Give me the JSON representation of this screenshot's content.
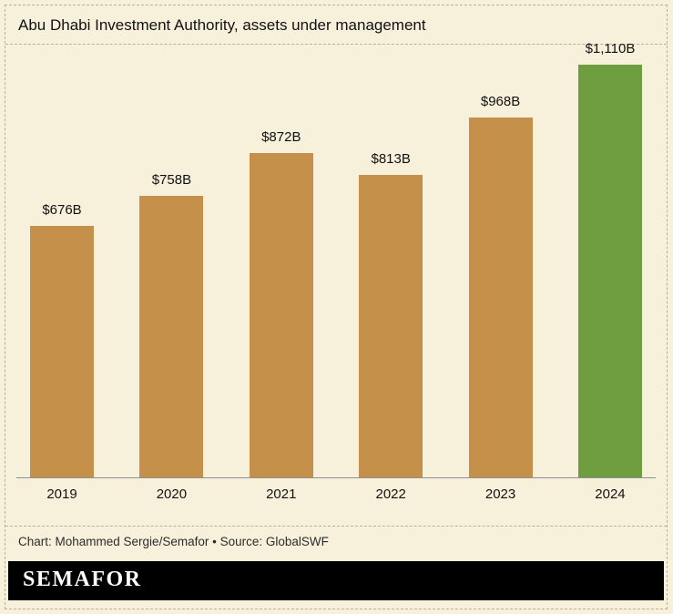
{
  "title": "Abu Dhabi Investment Authority, assets under management",
  "credit": "Chart: Mohammed Sergie/Semafor • Source: GlobalSWF",
  "logo_text": "SEMAFOR",
  "colors": {
    "background": "#f7f1dc",
    "bar": "#c4904a",
    "highlight": "#6f9e41",
    "footer_bg": "#000000",
    "footer_text": "#ffffff"
  },
  "chart_data": {
    "type": "bar",
    "title": "Abu Dhabi Investment Authority, assets under management",
    "categories": [
      "2019",
      "2020",
      "2021",
      "2022",
      "2023",
      "2024"
    ],
    "values": [
      676,
      758,
      872,
      813,
      968,
      1110
    ],
    "value_labels": [
      "$676B",
      "$758B",
      "$872B",
      "$813B",
      "$968B",
      "$1,110B"
    ],
    "units": "USD billions",
    "xlabel": "",
    "ylabel": "",
    "ylim": [
      0,
      1110
    ],
    "highlight_index": 5,
    "grid": false,
    "legend": "none"
  }
}
